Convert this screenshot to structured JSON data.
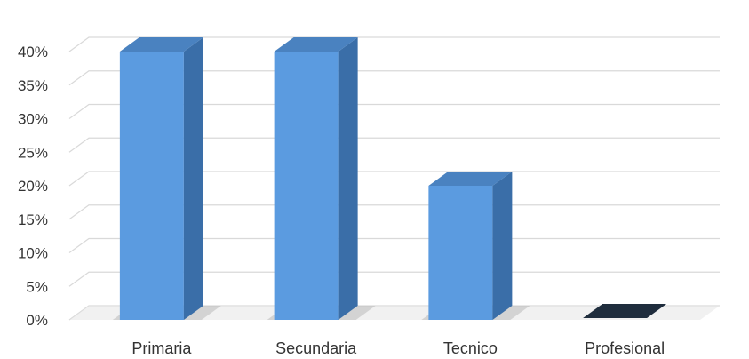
{
  "chart_data": {
    "type": "bar",
    "style": "3d-column",
    "categories": [
      "Primaria",
      "Secundaria",
      "Tecnico",
      "Profesional"
    ],
    "values": [
      40,
      40,
      20,
      0
    ],
    "ylim": [
      0,
      40
    ],
    "ytick_values": [
      0,
      5,
      10,
      15,
      20,
      25,
      30,
      35,
      40
    ],
    "ytick_labels": [
      "0%",
      "5%",
      "10%",
      "15%",
      "20%",
      "25%",
      "30%",
      "35%",
      "40%"
    ],
    "title": "",
    "xlabel": "",
    "ylabel": "",
    "grid": true,
    "legend": "none",
    "colors": {
      "bar_front": "#5b9be0",
      "bar_side": "#3a6ea8",
      "bar_top": "#4a82c0",
      "zero_bar": "#1f2d3d",
      "grid": "#d9d9d9",
      "floor": "#e6e6e6"
    }
  }
}
